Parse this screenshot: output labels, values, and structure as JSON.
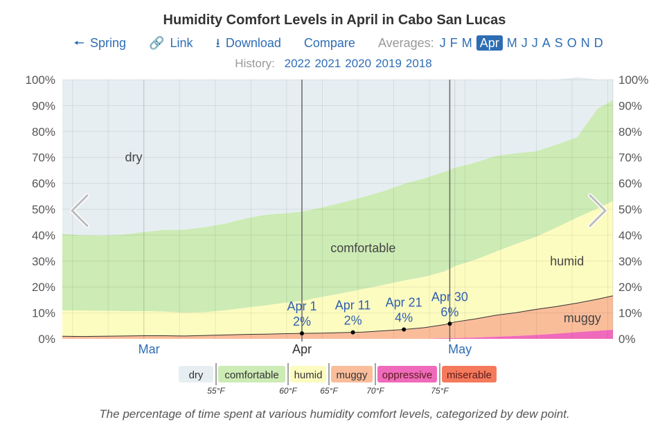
{
  "header": {
    "title": "Humidity Comfort Levels in April in Cabo San Lucas",
    "spring": "Spring",
    "link": "Link",
    "download": "Download",
    "compare": "Compare",
    "averages_label": "Averages:",
    "months": [
      "J",
      "F",
      "M",
      "Apr",
      "M",
      "J",
      "J",
      "A",
      "S",
      "O",
      "N",
      "D"
    ],
    "active_month": "Apr",
    "history_label": "History:",
    "years": [
      "2022",
      "2021",
      "2020",
      "2019",
      "2018"
    ]
  },
  "caption": "The percentage of time spent at various humidity comfort levels, categorized by dew point.",
  "colors": {
    "dry": "#e6eef2",
    "comfortable": "#cdebb5",
    "humid": "#fdfcc0",
    "muggy": "#fabd9a",
    "oppressive": "#f06abb",
    "miserable": "#f57a5c",
    "link": "#2e6db4"
  },
  "chart_data": {
    "type": "area",
    "title": "Humidity Comfort Levels in April in Cabo San Lucas",
    "x_unit": "day of year",
    "xlim": [
      44,
      152
    ],
    "ylim": [
      0,
      100
    ],
    "yticks": [
      "0%",
      "10%",
      "20%",
      "30%",
      "40%",
      "50%",
      "60%",
      "70%",
      "80%",
      "90%",
      "100%"
    ],
    "month_labels": [
      {
        "label": "Mar",
        "day": 61
      },
      {
        "label": "Apr",
        "day": 91
      },
      {
        "label": "May",
        "day": 122
      }
    ],
    "month_boundaries": [
      60,
      91,
      121,
      152
    ],
    "highlight_lines": [
      91,
      120
    ],
    "x": [
      44,
      48,
      52,
      56,
      60,
      64,
      68,
      72,
      76,
      80,
      84,
      88,
      91,
      95,
      99,
      103,
      107,
      111,
      115,
      119,
      121,
      125,
      129,
      133,
      137,
      141,
      145,
      149,
      152
    ],
    "series": [
      {
        "name": "miserable",
        "values": [
          0,
          0,
          0,
          0,
          0,
          0,
          0,
          0,
          0,
          0,
          0,
          0,
          0,
          0,
          0,
          0,
          0,
          0,
          0,
          0,
          0,
          0,
          0,
          0,
          0,
          0,
          0,
          0,
          0
        ]
      },
      {
        "name": "oppressive",
        "values": [
          0,
          0,
          0,
          0,
          0,
          0,
          0,
          0,
          0,
          0,
          0,
          0,
          0,
          0,
          0,
          0,
          0,
          0,
          0,
          0.2,
          0.3,
          0.5,
          0.8,
          1.1,
          1.5,
          2.0,
          2.6,
          3.1,
          3.5
        ]
      },
      {
        "name": "muggy",
        "values": [
          1,
          0.9,
          1,
          1.1,
          1.2,
          1.2,
          1.1,
          1.3,
          1.5,
          1.7,
          1.8,
          2.0,
          2.1,
          2.2,
          2.4,
          2.6,
          3.1,
          3.6,
          4.3,
          5.3,
          6.2,
          7.2,
          8.3,
          9.0,
          9.9,
          10.5,
          11.2,
          12.2,
          13.1
        ]
      },
      {
        "name": "humid",
        "values": [
          10.0,
          10.0,
          9.8,
          9.6,
          9.5,
          9.3,
          9.0,
          9.0,
          9.5,
          10.3,
          11.1,
          12.0,
          12.5,
          14.0,
          15.2,
          16.6,
          17.7,
          18.9,
          19.6,
          20.5,
          21.5,
          22.8,
          24.5,
          26.5,
          28.0,
          30.5,
          33.0,
          35.0,
          36.5
        ]
      },
      {
        "name": "comfortable",
        "values": [
          29.5,
          29.0,
          29.0,
          29.5,
          30.5,
          31.5,
          32.0,
          32.8,
          33.5,
          34.5,
          35.0,
          34.5,
          34.5,
          34.5,
          35.0,
          35.5,
          36.2,
          37.3,
          38.0,
          38.5,
          38.0,
          37.5,
          37.0,
          35.0,
          33.0,
          32.0,
          31.0,
          38.5,
          39.0
        ]
      },
      {
        "name": "dry",
        "values": [
          59.5,
          60.1,
          60.2,
          59.8,
          58.8,
          58.0,
          57.9,
          56.9,
          55.5,
          53.5,
          52.1,
          51.5,
          50.9,
          49.3,
          47.4,
          45.3,
          43.0,
          40.2,
          38.1,
          35.5,
          34.0,
          32.0,
          29.4,
          28.4,
          27.6,
          25.0,
          23.2,
          11.2,
          8.0
        ]
      }
    ],
    "annotations": [
      {
        "date": "Apr 1",
        "value": "2%",
        "day": 91,
        "y": 2.1
      },
      {
        "date": "Apr 11",
        "value": "2%",
        "day": 101,
        "y": 2.5
      },
      {
        "date": "Apr 21",
        "value": "4%",
        "day": 111,
        "y": 3.6
      },
      {
        "date": "Apr 30",
        "value": "6%",
        "day": 120,
        "y": 5.8
      }
    ],
    "area_labels": [
      {
        "text": "dry",
        "day": 58,
        "y": 70
      },
      {
        "text": "comfortable",
        "day": 103,
        "y": 35
      },
      {
        "text": "humid",
        "day": 143,
        "y": 30
      },
      {
        "text": "muggy",
        "day": 146,
        "y": 8
      }
    ],
    "legend": [
      {
        "name": "dry",
        "threshold": "55°F"
      },
      {
        "name": "comfortable",
        "threshold": "60°F"
      },
      {
        "name": "humid",
        "threshold": "65°F"
      },
      {
        "name": "muggy",
        "threshold": "70°F"
      },
      {
        "name": "oppressive",
        "threshold": "75°F"
      },
      {
        "name": "miserable",
        "threshold": ""
      }
    ]
  }
}
